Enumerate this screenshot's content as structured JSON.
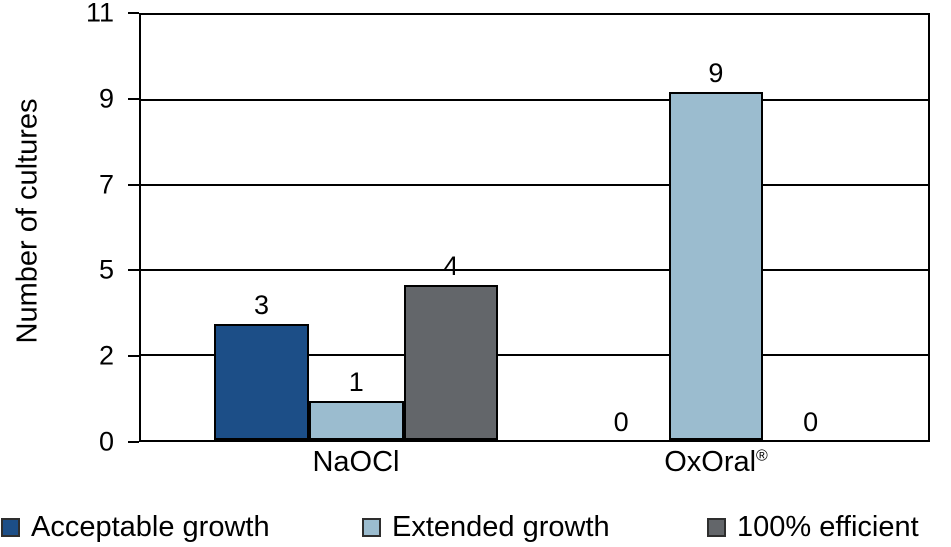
{
  "chart_data": {
    "type": "bar",
    "title": "",
    "xlabel": "",
    "ylabel": "Number of cultures",
    "ylim": [
      0,
      11
    ],
    "ytick_labels": [
      "0",
      "2",
      "5",
      "7",
      "9",
      "11"
    ],
    "grid": true,
    "legend_position": "bottom",
    "categories": [
      {
        "text": "NaOCl",
        "sup": ""
      },
      {
        "text": "OxOral",
        "sup": "®"
      }
    ],
    "series": [
      {
        "name": "Acceptable growth",
        "color": "#1C4E87",
        "values": [
          3,
          0
        ]
      },
      {
        "name": "Extended growth",
        "color": "#9BBCCF",
        "values": [
          1,
          9
        ]
      },
      {
        "name": "100% efficient",
        "color": "#63666A",
        "values": [
          4,
          0
        ]
      }
    ],
    "value_labels": [
      [
        "3",
        "1",
        "4"
      ],
      [
        "0",
        "9",
        "0"
      ]
    ],
    "colors": {
      "axis_line": "#000000",
      "text": "#000000",
      "background": "#ffffff",
      "legend_swatch_border": "#2e2e2e"
    }
  }
}
